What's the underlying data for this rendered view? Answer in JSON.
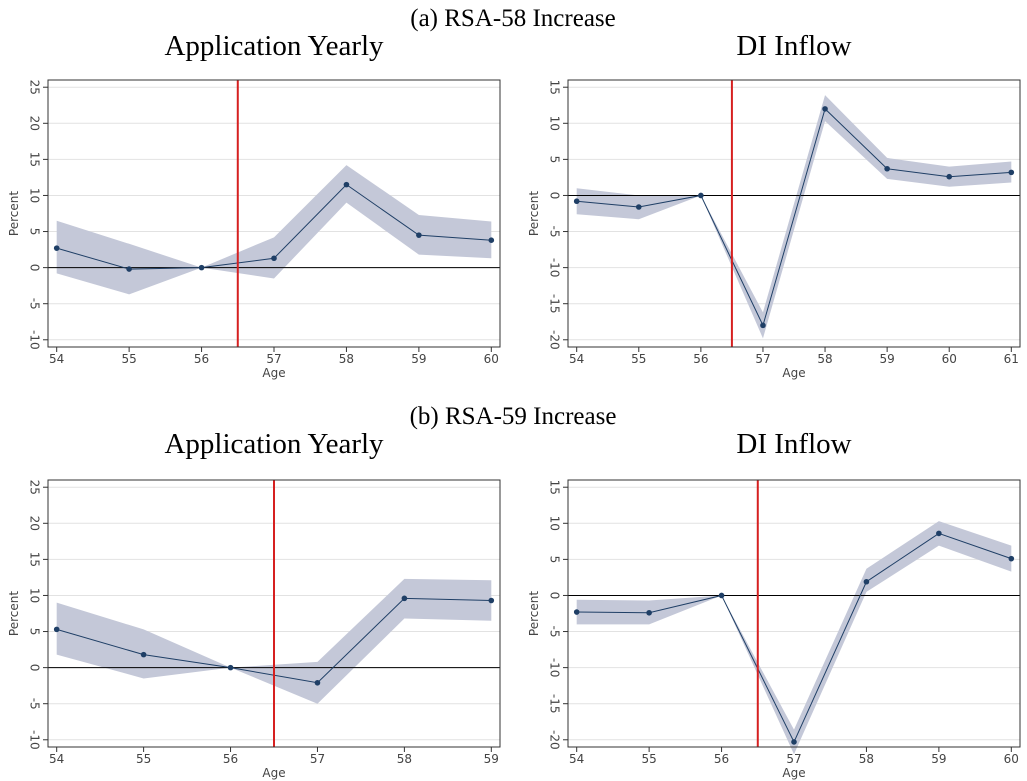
{
  "headings": [
    "(a) RSA-58 Increase",
    "(b) RSA-59 Increase"
  ],
  "chart_data": [
    {
      "type": "line",
      "title": "Application Yearly",
      "xlabel": "Age",
      "ylabel": "Percent",
      "x": [
        54,
        55,
        56,
        57,
        58,
        59,
        60
      ],
      "series": [
        {
          "color": "#1f3f66",
          "band_color": "#c4c8d8",
          "values": [
            2.7,
            -0.2,
            0,
            1.3,
            11.5,
            4.5,
            3.8
          ],
          "lower": [
            -0.8,
            -3.7,
            0,
            -1.5,
            9.0,
            1.8,
            1.3
          ],
          "upper": [
            6.5,
            3.3,
            0,
            4.2,
            14.2,
            7.3,
            6.4
          ]
        }
      ],
      "xlim": [
        53.88,
        60.12
      ],
      "xticks": [
        54,
        55,
        56,
        57,
        58,
        59,
        60
      ],
      "ylim": [
        -11,
        26
      ],
      "yticks": [
        -10,
        -5,
        0,
        5,
        10,
        15,
        20,
        25
      ],
      "grid": true,
      "hline": 0,
      "vline": 56.5,
      "vline_color": "#d62020"
    },
    {
      "type": "line",
      "title": "DI Inflow",
      "xlabel": "Age",
      "ylabel": "Percent",
      "x": [
        54,
        55,
        56,
        57,
        58,
        59,
        60,
        61
      ],
      "series": [
        {
          "color": "#1f3f66",
          "band_color": "#c4c8d8",
          "values": [
            -0.8,
            -1.6,
            0,
            -18,
            12,
            3.7,
            2.6,
            3.2
          ],
          "lower": [
            -2.6,
            -3.3,
            0,
            -19.8,
            10.3,
            2.3,
            1.2,
            1.8
          ],
          "upper": [
            1.0,
            0,
            0,
            -16.2,
            13.9,
            5.2,
            4.0,
            4.7
          ]
        }
      ],
      "xlim": [
        53.86,
        61.14
      ],
      "xticks": [
        54,
        55,
        56,
        57,
        58,
        59,
        60,
        61
      ],
      "ylim": [
        -21,
        16
      ],
      "yticks": [
        -20,
        -15,
        -10,
        -5,
        0,
        5,
        10,
        15
      ],
      "grid": true,
      "hline": 0,
      "vline": 56.5,
      "vline_color": "#d62020"
    },
    {
      "type": "line",
      "title": "Application Yearly",
      "xlabel": "Age",
      "ylabel": "Percent",
      "x": [
        54,
        55,
        56,
        57,
        58,
        59
      ],
      "series": [
        {
          "color": "#1f3f66",
          "band_color": "#c4c8d8",
          "values": [
            5.3,
            1.8,
            0,
            -2.1,
            9.6,
            9.3
          ],
          "lower": [
            1.8,
            -1.5,
            0,
            -5.0,
            6.8,
            6.5
          ],
          "upper": [
            9.0,
            5.3,
            0,
            0.8,
            12.3,
            12.1
          ]
        }
      ],
      "xlim": [
        53.9,
        59.1
      ],
      "xticks": [
        54,
        55,
        56,
        57,
        58,
        59
      ],
      "ylim": [
        -11,
        26
      ],
      "yticks": [
        -10,
        -5,
        0,
        5,
        10,
        15,
        20,
        25
      ],
      "grid": true,
      "hline": 0,
      "vline": 56.5,
      "vline_color": "#d62020"
    },
    {
      "type": "line",
      "title": "DI Inflow",
      "xlabel": "Age",
      "ylabel": "Percent",
      "x": [
        54,
        55,
        56,
        57,
        58,
        59,
        60
      ],
      "series": [
        {
          "color": "#1f3f66",
          "band_color": "#c4c8d8",
          "values": [
            -2.3,
            -2.4,
            0,
            -20.3,
            1.9,
            8.6,
            5.1
          ],
          "lower": [
            -4.0,
            -4.0,
            0,
            -22.0,
            0.5,
            6.9,
            3.3
          ],
          "upper": [
            -0.6,
            -0.7,
            0,
            -18.6,
            3.7,
            10.3,
            6.9
          ]
        }
      ],
      "xlim": [
        53.88,
        60.12
      ],
      "xticks": [
        54,
        55,
        56,
        57,
        58,
        59,
        60
      ],
      "ylim": [
        -21,
        16
      ],
      "yticks": [
        -20,
        -15,
        -10,
        -5,
        0,
        5,
        10,
        15
      ],
      "grid": true,
      "hline": 0,
      "vline": 56.5,
      "vline_color": "#d62020"
    }
  ]
}
